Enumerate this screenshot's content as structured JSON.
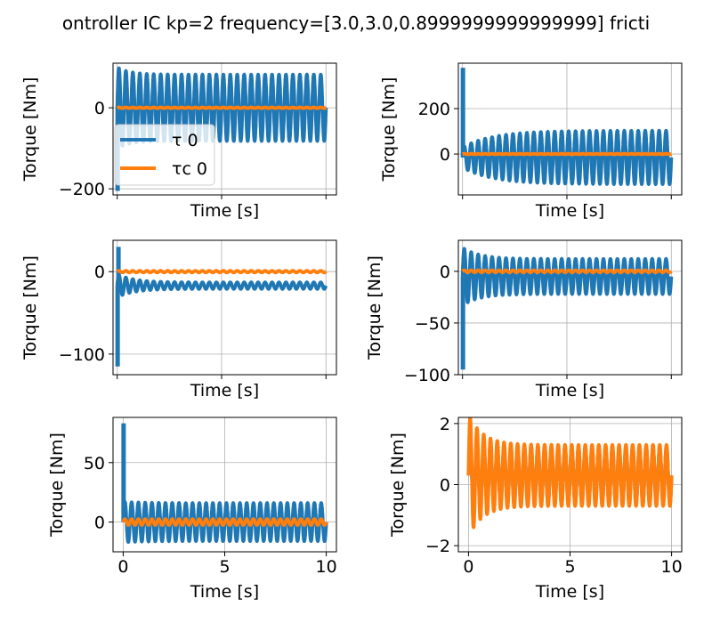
{
  "figure": {
    "title": "ontroller IC kp=2 frequency=[3.0,3.0,0.8999999999999999] fricti"
  },
  "colors": {
    "tau": "#1f77b4",
    "tau_c": "#ff7f0e",
    "grid": "#b0b0b0"
  },
  "chart_data": [
    {
      "type": "line",
      "xlabel": "Time [s]",
      "ylabel": "Torque [Nm]",
      "xlim": [
        -0.2,
        10.5
      ],
      "ylim": [
        -215,
        110
      ],
      "xticks": [
        0,
        5,
        10
      ],
      "show_xticklabels": false,
      "yticks": [
        0,
        -200
      ],
      "grid": true,
      "legend": {
        "placement": "lower-left",
        "entries": [
          "τ 0",
          "τc 0"
        ]
      },
      "series": [
        {
          "name": "τ 0",
          "key": "tau",
          "t_end": 10.0,
          "freq_hz": 3.0,
          "offset": 0,
          "amp_start": 100,
          "amp_end": 82,
          "decay": 0.6,
          "spike": -205,
          "lw": 4
        },
        {
          "name": "τc 0",
          "key": "tau_c",
          "t_end": 10.0,
          "freq_hz": 3.0,
          "offset": 0,
          "amp_start": 1,
          "amp_end": 1,
          "decay": 1,
          "lw": 4
        }
      ]
    },
    {
      "type": "line",
      "xlabel": "Time [s]",
      "ylabel": "Torque [Nm]",
      "xlim": [
        -0.2,
        10.5
      ],
      "ylim": [
        -180,
        400
      ],
      "xticks": [
        0,
        5,
        10
      ],
      "show_xticklabels": false,
      "yticks": [
        200,
        0
      ],
      "grid": true,
      "series": [
        {
          "key": "tau",
          "t_end": 10.0,
          "freq_hz": 3.0,
          "offset": -15,
          "amp_start": 45,
          "amp_end": 118,
          "decay": 1.5,
          "spike": 380,
          "lw": 4
        },
        {
          "key": "tau_c",
          "t_end": 10.0,
          "freq_hz": 3.0,
          "offset": 0,
          "amp_start": 1,
          "amp_end": 1,
          "decay": 1,
          "lw": 4
        }
      ]
    },
    {
      "type": "line",
      "xlabel": "Time [s]",
      "ylabel": "Torque [Nm]",
      "xlim": [
        -0.2,
        10.5
      ],
      "ylim": [
        -125,
        38
      ],
      "xticks": [
        0,
        5,
        10
      ],
      "show_xticklabels": false,
      "yticks": [
        0,
        -100
      ],
      "grid": true,
      "series": [
        {
          "key": "tau",
          "t_end": 10.0,
          "freq_hz": 3.0,
          "offset": -17,
          "amp_start": 14,
          "amp_end": 4,
          "decay": 0.8,
          "spike": -115,
          "spike2": 30,
          "lw": 4
        },
        {
          "key": "tau_c",
          "t_end": 10.0,
          "freq_hz": 3.0,
          "offset": 0,
          "amp_start": 1,
          "amp_end": 1,
          "decay": 1,
          "lw": 4
        }
      ]
    },
    {
      "type": "line",
      "xlabel": "Time [s]",
      "ylabel": "Torque [Nm]",
      "xlim": [
        -0.2,
        10.5
      ],
      "ylim": [
        -100,
        30
      ],
      "xticks": [
        0,
        5,
        10
      ],
      "show_xticklabels": false,
      "yticks": [
        0,
        -50,
        -100
      ],
      "grid": true,
      "series": [
        {
          "key": "tau",
          "t_end": 10.0,
          "freq_hz": 3.0,
          "offset": -5,
          "amp_start": 28,
          "amp_end": 17,
          "decay": 0.8,
          "spike": -95,
          "lw": 4
        },
        {
          "key": "tau_c",
          "t_end": 10.0,
          "freq_hz": 3.0,
          "offset": 0,
          "amp_start": 1,
          "amp_end": 1,
          "decay": 1,
          "lw": 4
        }
      ]
    },
    {
      "type": "line",
      "xlabel": "Time [s]",
      "ylabel": "Torque [Nm]",
      "xlim": [
        -0.5,
        10.5
      ],
      "ylim": [
        -25,
        88
      ],
      "xticks": [
        0,
        5,
        10
      ],
      "show_xticklabels": true,
      "yticks": [
        50,
        0
      ],
      "grid": true,
      "series": [
        {
          "key": "tau",
          "t_end": 10.0,
          "freq_hz": 3.0,
          "offset": 0,
          "amp_start": 17,
          "amp_end": 16,
          "decay": 1,
          "spike": 83,
          "lw": 4
        },
        {
          "key": "tau_c",
          "t_end": 10.0,
          "freq_hz": 3.0,
          "offset": 0,
          "amp_start": 2.5,
          "amp_end": 2.5,
          "decay": 1,
          "lw": 4
        }
      ]
    },
    {
      "type": "line",
      "xlabel": "Time [s]",
      "ylabel": "Torque [Nm]",
      "xlim": [
        -0.5,
        10.5
      ],
      "ylim": [
        -2.2,
        2.2
      ],
      "xticks": [
        0,
        5,
        10
      ],
      "show_xticklabels": true,
      "yticks": [
        2,
        0,
        -2
      ],
      "grid": true,
      "series": [
        {
          "key": "tau",
          "t_end": 10.0,
          "freq_hz": 3.0,
          "offset": 0.3,
          "amp_start": 0.9,
          "amp_end": 0.9,
          "decay": 1,
          "lw": 4
        },
        {
          "key": "tau_c",
          "t_end": 10.0,
          "freq_hz": 3.0,
          "offset": 0.3,
          "amp_start": 2.0,
          "amp_end": 1.0,
          "decay": 0.7,
          "lw": 4
        }
      ]
    }
  ]
}
